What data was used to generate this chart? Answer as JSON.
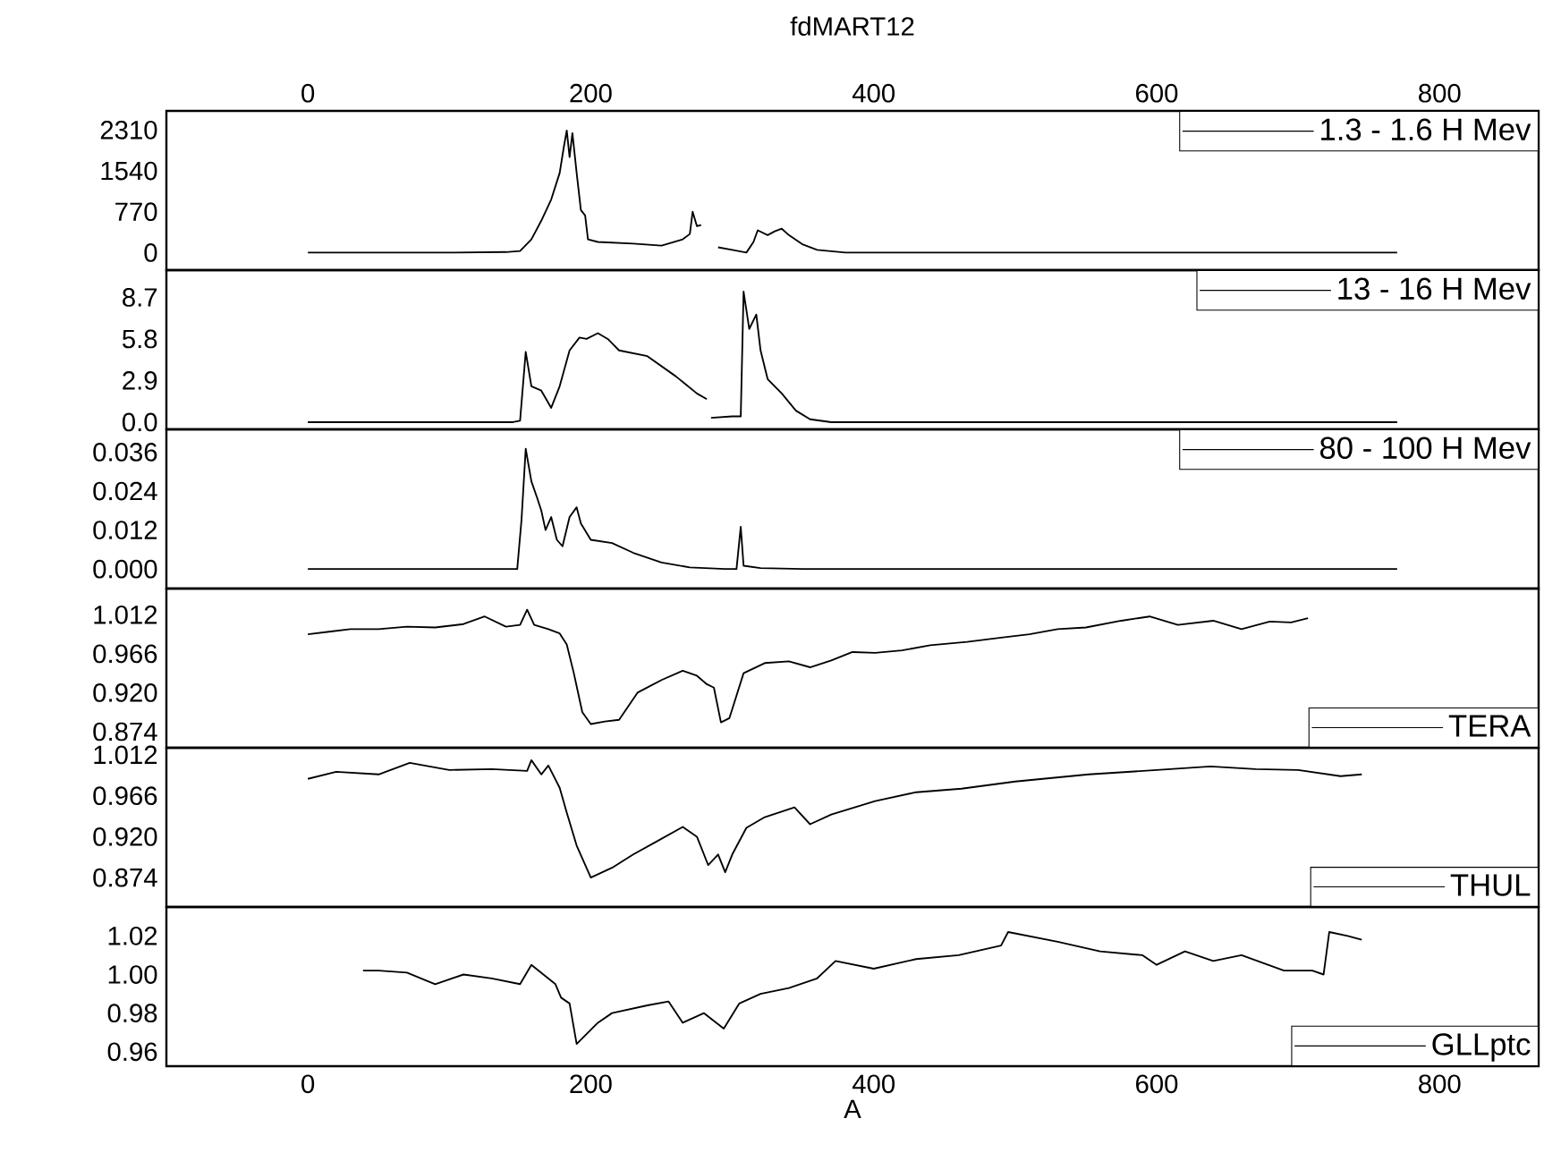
{
  "chart_data": [
    {
      "type": "line",
      "title": "fdMART12",
      "xlim": [
        -100,
        870
      ],
      "x2lim": [
        -100,
        870
      ],
      "x2ticks": [
        0,
        200,
        400,
        600,
        800
      ],
      "ylim": [
        -330,
        2670
      ],
      "yticks": [
        0,
        770,
        1540,
        2310
      ],
      "legend": "top right",
      "tick_labels": "y",
      "x": [
        0,
        50,
        100,
        140,
        150,
        158,
        165,
        172,
        178,
        181,
        183,
        185,
        187,
        190,
        193,
        196,
        198,
        205,
        230,
        250,
        265,
        270,
        272,
        275,
        278,
        285,
        290,
        300,
        310,
        315,
        318,
        325,
        330,
        335,
        340,
        350,
        360,
        380,
        450,
        550,
        650,
        770
      ],
      "series": [
        {
          "name": "1.3 - 1.6 H Mev",
          "color": "#000000",
          "values": [
            0,
            0,
            0,
            10,
            30,
            250,
            600,
            1000,
            1500,
            2000,
            2300,
            1800,
            2250,
            1500,
            800,
            700,
            250,
            200,
            170,
            130,
            250,
            350,
            770,
            500,
            520,
            null,
            100,
            50,
            0,
            200,
            420,
            330,
            400,
            450,
            330,
            150,
            50,
            0,
            0,
            0,
            0,
            0
          ]
        }
      ]
    },
    {
      "type": "line",
      "xlim": [
        -100,
        870
      ],
      "ylim": [
        -0.5,
        10.6
      ],
      "yticks": [
        {
          "value": 0,
          "label": "0.0"
        },
        2.9,
        5.8,
        8.7
      ],
      "legend": "top right",
      "tick_labels": "y",
      "x": [
        0,
        100,
        145,
        150,
        154,
        158,
        165,
        172,
        178,
        185,
        192,
        197,
        205,
        212,
        220,
        240,
        260,
        275,
        282,
        283,
        285,
        300,
        306,
        308,
        312,
        317,
        320,
        325,
        335,
        345,
        355,
        370,
        400,
        550,
        770
      ],
      "series": [
        {
          "name": "13 - 16 H Mev",
          "color": "#000000",
          "values": [
            0,
            0,
            0,
            0.1,
            4.9,
            2.5,
            2.2,
            1.0,
            2.5,
            5.0,
            5.9,
            5.8,
            6.2,
            5.8,
            5.0,
            4.6,
            3.2,
            2.0,
            1.6,
            null,
            0.3,
            0.4,
            0.4,
            9.1,
            6.5,
            7.5,
            5.0,
            3.0,
            2.0,
            0.8,
            0.2,
            0,
            0,
            0,
            0
          ]
        }
      ]
    },
    {
      "type": "line",
      "xlim": [
        -100,
        870
      ],
      "ylim": [
        -0.006,
        0.043
      ],
      "yticks": [
        {
          "value": 0,
          "label": "0.000"
        },
        0.012,
        0.024,
        0.036
      ],
      "legend": "top right",
      "tick_labels": "y",
      "x": [
        0,
        100,
        148,
        151,
        154,
        158,
        162,
        165,
        168,
        172,
        176,
        180,
        185,
        190,
        193,
        200,
        215,
        230,
        250,
        270,
        295,
        303,
        306,
        308,
        320,
        350,
        550,
        770
      ],
      "series": [
        {
          "name": "80 - 100 H Mev",
          "color": "#000000",
          "values": [
            0,
            0,
            0,
            0.015,
            0.037,
            0.027,
            0.022,
            0.018,
            0.012,
            0.016,
            0.009,
            0.007,
            0.016,
            0.019,
            0.014,
            0.009,
            0.008,
            0.005,
            0.002,
            0.0005,
            0,
            0,
            0.013,
            0.001,
            0.0003,
            0,
            0,
            0
          ]
        }
      ]
    },
    {
      "type": "line",
      "xlim": [
        -100,
        870
      ],
      "ylim": [
        0.855,
        1.043
      ],
      "yticks": [
        0.874,
        {
          "value": 0.92,
          "label": "0.920"
        },
        0.966,
        1.012
      ],
      "legend": "bottom right",
      "tick_labels": "y",
      "x": [
        0,
        15,
        30,
        50,
        70,
        90,
        110,
        125,
        140,
        150,
        155,
        160,
        170,
        178,
        183,
        188,
        194,
        200,
        210,
        220,
        233,
        250,
        265,
        275,
        282,
        287,
        292,
        298,
        308,
        323,
        340,
        355,
        370,
        385,
        401,
        420,
        440,
        466,
        490,
        510,
        530,
        550,
        575,
        595,
        615,
        640,
        660,
        680,
        695,
        707
      ],
      "series": [
        {
          "name": "TERA",
          "color": "#000000",
          "values": [
            0.989,
            0.992,
            0.995,
            0.995,
            0.998,
            0.997,
            1.001,
            1.01,
            0.998,
            1.0,
            1.018,
            1.0,
            0.995,
            0.99,
            0.977,
            0.943,
            0.897,
            0.883,
            0.886,
            0.888,
            0.92,
            0.935,
            0.946,
            0.94,
            0.93,
            0.926,
            0.885,
            0.89,
            0.943,
            0.955,
            0.957,
            0.95,
            0.958,
            0.968,
            0.967,
            0.97,
            0.976,
            0.98,
            0.985,
            0.989,
            0.995,
            0.997,
            1.005,
            1.01,
            1.0,
            1.005,
            0.995,
            1.004,
            1.003,
            1.008
          ]
        }
      ]
    },
    {
      "type": "line",
      "xlim": [
        -100,
        870
      ],
      "ylim": [
        0.841,
        1.02
      ],
      "yticks": [
        0.874,
        {
          "value": 0.92,
          "label": "0.920"
        },
        0.966,
        1.012
      ],
      "legend": "bottom right",
      "tick_labels": "y",
      "x": [
        0,
        20,
        50,
        72,
        100,
        130,
        155,
        158,
        165,
        170,
        178,
        183,
        190,
        200,
        215,
        230,
        247,
        265,
        275,
        283,
        290,
        295,
        300,
        310,
        323,
        344,
        355,
        370,
        401,
        430,
        462,
        500,
        552,
        600,
        638,
        670,
        700,
        730,
        745
      ],
      "series": [
        {
          "name": "THUL",
          "color": "#000000",
          "values": [
            0.985,
            0.993,
            0.99,
            1.003,
            0.995,
            0.996,
            0.994,
            1.006,
            0.99,
            1.0,
            0.975,
            0.947,
            0.91,
            0.874,
            0.885,
            0.9,
            0.915,
            0.931,
            0.92,
            0.888,
            0.9,
            0.88,
            0.9,
            0.93,
            0.942,
            0.953,
            0.934,
            0.945,
            0.96,
            0.97,
            0.974,
            0.982,
            0.99,
            0.995,
            0.999,
            0.996,
            0.995,
            0.988,
            0.99
          ]
        }
      ]
    },
    {
      "type": "line",
      "xlabel": "A",
      "xlim": [
        -100,
        870
      ],
      "xticks": [
        0,
        200,
        400,
        600,
        800
      ],
      "ylim": [
        0.9525,
        1.035
      ],
      "yticks": [
        {
          "value": 0.96,
          "label": "0.96"
        },
        {
          "value": 0.98,
          "label": "0.98"
        },
        {
          "value": 1.0,
          "label": "1.00"
        },
        {
          "value": 1.02,
          "label": "1.02"
        }
      ],
      "legend": "bottom right",
      "x": [
        39,
        50,
        70,
        90,
        110,
        130,
        150,
        158,
        175,
        179,
        185,
        190,
        205,
        215,
        240,
        255,
        265,
        280,
        294,
        305,
        320,
        340,
        360,
        373,
        400,
        430,
        460,
        490,
        495,
        530,
        560,
        590,
        600,
        620,
        640,
        660,
        690,
        710,
        718,
        722,
        735,
        745
      ],
      "series": [
        {
          "name": "GLLptc",
          "color": "#000000",
          "values": [
            1.002,
            1.002,
            1.001,
            0.995,
            1.0,
            0.998,
            0.995,
            1.005,
            0.995,
            0.988,
            0.985,
            0.964,
            0.975,
            0.98,
            0.984,
            0.986,
            0.975,
            0.98,
            0.972,
            0.985,
            0.99,
            0.993,
            0.998,
            1.007,
            1.003,
            1.008,
            1.01,
            1.015,
            1.022,
            1.017,
            1.012,
            1.01,
            1.005,
            1.012,
            1.007,
            1.01,
            1.002,
            1.002,
            1.0,
            1.022,
            1.02,
            1.018
          ]
        }
      ]
    }
  ]
}
